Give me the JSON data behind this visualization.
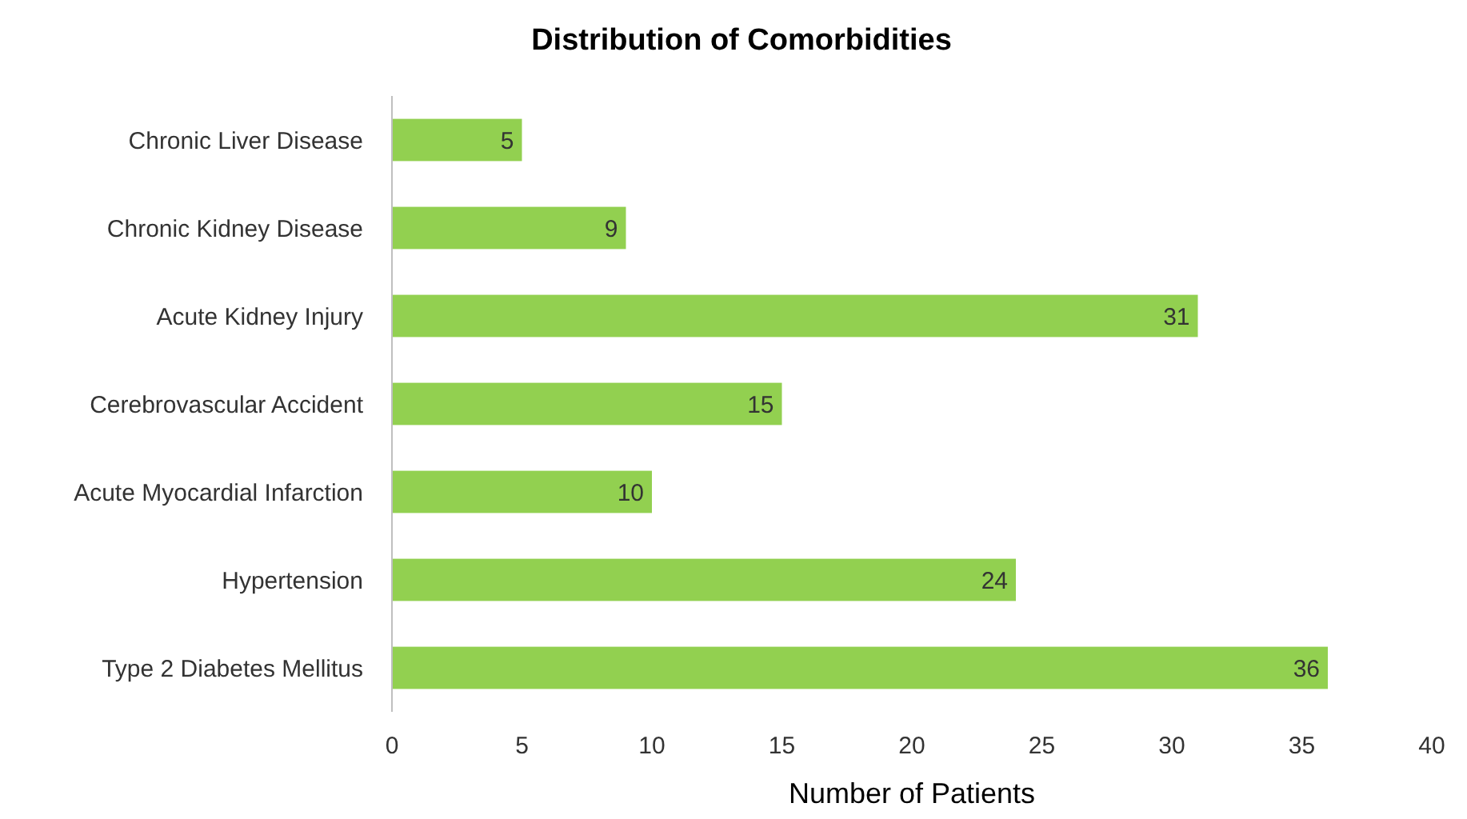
{
  "chart_data": {
    "type": "bar",
    "orientation": "horizontal",
    "title": "Distribution of Comorbidities",
    "xlabel": "Number of Patients",
    "categories": [
      "Chronic Liver Disease",
      "Chronic Kidney Disease",
      "Acute Kidney Injury",
      "Cerebrovascular Accident",
      "Acute Myocardial Infarction",
      "Hypertension",
      "Type 2 Diabetes Mellitus"
    ],
    "values": [
      5,
      9,
      31,
      15,
      10,
      24,
      36
    ],
    "color": "#92d050",
    "xlim": [
      0,
      40
    ],
    "xticks": [
      0,
      5,
      10,
      15,
      20,
      25,
      30,
      35,
      40
    ],
    "grid": false,
    "data_labels": true
  }
}
